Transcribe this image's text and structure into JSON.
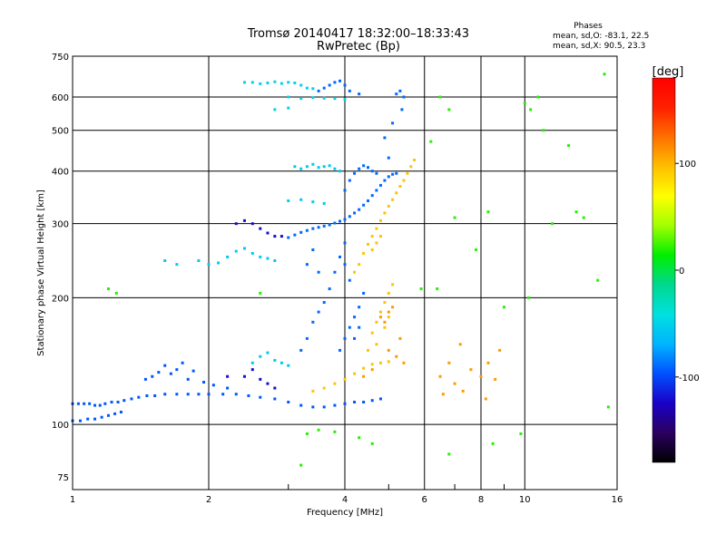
{
  "chart_data": {
    "type": "scatter",
    "title": "Tromsø 20140417 18:32:00–18:33:43",
    "subtitle": "RwPretec (Bp)",
    "xlabel": "Frequency [MHz]",
    "ylabel": "Stationary phase Virtual Height [km]",
    "x_scale": "log",
    "y_scale": "log",
    "xlim": [
      1,
      16
    ],
    "ylim": [
      70,
      750
    ],
    "x_ticks": [
      1,
      2,
      4,
      6,
      8,
      10,
      16
    ],
    "x_tick_labels": [
      "1",
      "2",
      "4",
      "6",
      "8",
      "10",
      "16"
    ],
    "x_grid": [
      1,
      2,
      4,
      6,
      8,
      10
    ],
    "y_ticks": [
      75,
      100,
      200,
      300,
      400,
      500,
      600,
      750
    ],
    "y_tick_labels": [
      "75",
      "100",
      "200",
      "300",
      "400",
      "500",
      "600",
      "750"
    ],
    "y_grid": [
      100,
      200,
      300,
      400,
      500,
      600
    ],
    "grid": true,
    "phases_info": {
      "heading": "Phases",
      "line_o": "mean, sd,O: -83.1, 22.5",
      "line_x": "mean, sd,X:  90.5, 23.3"
    },
    "colorbar": {
      "label": "[deg]",
      "range": [
        -180,
        180
      ],
      "ticks": [
        100,
        0,
        -100
      ],
      "tick_labels": [
        "100",
        "0",
        "-100"
      ],
      "colors": [
        "#000000",
        "#2a0060",
        "#1a00c8",
        "#0050ff",
        "#00b4ff",
        "#00e0e0",
        "#00d890",
        "#00ee00",
        "#a0ff00",
        "#ffff00",
        "#ffc000",
        "#ff7000",
        "#ff2000",
        "#ff0000"
      ]
    },
    "series": [
      {
        "description": "O-mode E/F1 low trace",
        "phase": -95,
        "points": [
          [
            1.0,
            112
          ],
          [
            1.03,
            112
          ],
          [
            1.06,
            112
          ],
          [
            1.09,
            112
          ],
          [
            1.12,
            111
          ],
          [
            1.15,
            111
          ],
          [
            1.18,
            112
          ],
          [
            1.22,
            113
          ],
          [
            1.26,
            113
          ],
          [
            1.3,
            114
          ],
          [
            1.35,
            115
          ],
          [
            1.4,
            116
          ],
          [
            1.46,
            117
          ],
          [
            1.52,
            117
          ],
          [
            1.6,
            118
          ],
          [
            1.7,
            118
          ],
          [
            1.8,
            118
          ],
          [
            1.9,
            118
          ],
          [
            2.0,
            118
          ],
          [
            2.15,
            118
          ],
          [
            2.3,
            118
          ],
          [
            2.45,
            117
          ],
          [
            2.6,
            116
          ],
          [
            2.8,
            115
          ],
          [
            3.0,
            113
          ],
          [
            3.2,
            111
          ],
          [
            3.4,
            110
          ],
          [
            3.6,
            110
          ],
          [
            3.8,
            111
          ],
          [
            4.0,
            112
          ],
          [
            4.2,
            113
          ],
          [
            4.4,
            113
          ],
          [
            4.6,
            114
          ],
          [
            4.8,
            115
          ],
          [
            1.0,
            102
          ],
          [
            1.04,
            102
          ],
          [
            1.08,
            103
          ],
          [
            1.12,
            103
          ],
          [
            1.16,
            104
          ],
          [
            1.2,
            105
          ],
          [
            1.24,
            106
          ],
          [
            1.28,
            107
          ],
          [
            1.45,
            128
          ],
          [
            1.5,
            130
          ],
          [
            1.55,
            133
          ],
          [
            1.6,
            138
          ],
          [
            1.65,
            132
          ],
          [
            1.7,
            135
          ],
          [
            1.75,
            140
          ],
          [
            1.8,
            128
          ],
          [
            1.85,
            134
          ],
          [
            1.95,
            126
          ],
          [
            2.05,
            124
          ],
          [
            2.2,
            122
          ]
        ]
      },
      {
        "description": "O-mode F2 trace with cusp",
        "phase": -90,
        "points": [
          [
            3.0,
            278
          ],
          [
            3.1,
            282
          ],
          [
            3.2,
            286
          ],
          [
            3.3,
            289
          ],
          [
            3.4,
            292
          ],
          [
            3.5,
            294
          ],
          [
            3.6,
            296
          ],
          [
            3.7,
            298
          ],
          [
            3.8,
            301
          ],
          [
            3.9,
            304
          ],
          [
            4.0,
            307
          ],
          [
            4.1,
            312
          ],
          [
            4.2,
            318
          ],
          [
            4.3,
            324
          ],
          [
            4.4,
            332
          ],
          [
            4.5,
            340
          ],
          [
            4.6,
            350
          ],
          [
            4.7,
            360
          ],
          [
            4.8,
            370
          ],
          [
            4.9,
            380
          ],
          [
            5.0,
            388
          ],
          [
            5.1,
            393
          ],
          [
            5.2,
            395
          ],
          [
            3.5,
            620
          ],
          [
            3.6,
            630
          ],
          [
            3.7,
            640
          ],
          [
            3.8,
            650
          ],
          [
            3.9,
            655
          ],
          [
            4.0,
            640
          ],
          [
            4.1,
            620
          ],
          [
            4.3,
            610
          ],
          [
            4.0,
            360
          ],
          [
            4.1,
            380
          ],
          [
            4.2,
            395
          ],
          [
            4.3,
            405
          ],
          [
            4.4,
            412
          ],
          [
            4.5,
            408
          ],
          [
            4.6,
            400
          ],
          [
            4.7,
            395
          ],
          [
            5.2,
            610
          ],
          [
            5.3,
            620
          ],
          [
            5.4,
            600
          ],
          [
            5.35,
            560
          ],
          [
            5.1,
            520
          ],
          [
            4.9,
            480
          ],
          [
            5.0,
            430
          ],
          [
            3.2,
            150
          ],
          [
            3.3,
            160
          ],
          [
            3.4,
            175
          ],
          [
            3.5,
            185
          ],
          [
            3.6,
            195
          ],
          [
            3.7,
            210
          ],
          [
            3.8,
            230
          ],
          [
            3.9,
            250
          ],
          [
            4.0,
            270
          ],
          [
            3.5,
            230
          ],
          [
            3.4,
            260
          ],
          [
            3.3,
            240
          ],
          [
            3.9,
            150
          ],
          [
            4.0,
            160
          ],
          [
            4.1,
            170
          ],
          [
            4.2,
            180
          ],
          [
            4.3,
            190
          ],
          [
            4.4,
            205
          ],
          [
            4.3,
            170
          ],
          [
            4.2,
            160
          ],
          [
            4.1,
            220
          ],
          [
            4.0,
            240
          ]
        ]
      },
      {
        "description": "O-mode mid-height blobs near 2.4-2.8 MHz",
        "phase": -120,
        "points": [
          [
            2.3,
            300
          ],
          [
            2.4,
            305
          ],
          [
            2.5,
            300
          ],
          [
            2.6,
            292
          ],
          [
            2.7,
            285
          ],
          [
            2.8,
            280
          ],
          [
            2.9,
            280
          ],
          [
            2.4,
            130
          ],
          [
            2.5,
            135
          ],
          [
            2.6,
            128
          ],
          [
            2.7,
            125
          ],
          [
            2.8,
            122
          ],
          [
            2.2,
            130
          ]
        ]
      },
      {
        "description": "X-mode F2 trace",
        "phase": 95,
        "points": [
          [
            4.2,
            230
          ],
          [
            4.3,
            240
          ],
          [
            4.4,
            255
          ],
          [
            4.5,
            268
          ],
          [
            4.6,
            280
          ],
          [
            4.7,
            292
          ],
          [
            4.8,
            305
          ],
          [
            4.9,
            318
          ],
          [
            5.0,
            330
          ],
          [
            5.1,
            342
          ],
          [
            5.2,
            355
          ],
          [
            5.3,
            368
          ],
          [
            5.4,
            380
          ],
          [
            5.5,
            395
          ],
          [
            5.6,
            410
          ],
          [
            5.7,
            425
          ],
          [
            4.5,
            150
          ],
          [
            4.6,
            165
          ],
          [
            4.7,
            175
          ],
          [
            4.8,
            185
          ],
          [
            4.9,
            195
          ],
          [
            5.0,
            205
          ],
          [
            5.1,
            215
          ],
          [
            4.7,
            155
          ],
          [
            4.9,
            170
          ],
          [
            5.0,
            180
          ],
          [
            3.4,
            120
          ],
          [
            3.6,
            122
          ],
          [
            3.8,
            125
          ],
          [
            4.0,
            128
          ],
          [
            4.2,
            132
          ],
          [
            4.4,
            136
          ],
          [
            4.6,
            139
          ],
          [
            4.8,
            140
          ],
          [
            5.0,
            141
          ],
          [
            4.6,
            260
          ],
          [
            4.7,
            270
          ],
          [
            4.8,
            280
          ]
        ]
      },
      {
        "description": "Cyan high echoes (~600 km)",
        "phase": -50,
        "points": [
          [
            2.4,
            650
          ],
          [
            2.5,
            650
          ],
          [
            2.6,
            645
          ],
          [
            2.7,
            648
          ],
          [
            2.8,
            652
          ],
          [
            2.9,
            646
          ],
          [
            3.0,
            650
          ],
          [
            3.1,
            648
          ],
          [
            3.2,
            640
          ],
          [
            3.3,
            630
          ],
          [
            3.4,
            628
          ],
          [
            3.0,
            600
          ],
          [
            3.2,
            595
          ],
          [
            3.4,
            598
          ],
          [
            3.6,
            596
          ],
          [
            3.8,
            595
          ],
          [
            4.0,
            592
          ],
          [
            2.8,
            560
          ],
          [
            3.0,
            565
          ]
        ]
      },
      {
        "description": "Cyan F-layer echoes (~400 km)",
        "phase": -55,
        "points": [
          [
            3.1,
            410
          ],
          [
            3.2,
            405
          ],
          [
            3.3,
            410
          ],
          [
            3.4,
            415
          ],
          [
            3.5,
            408
          ],
          [
            3.6,
            410
          ],
          [
            3.7,
            412
          ],
          [
            3.8,
            405
          ],
          [
            3.9,
            400
          ],
          [
            3.0,
            340
          ],
          [
            3.2,
            342
          ],
          [
            3.4,
            338
          ],
          [
            3.6,
            335
          ],
          [
            2.2,
            250
          ],
          [
            2.3,
            258
          ],
          [
            2.4,
            262
          ],
          [
            2.5,
            255
          ],
          [
            2.6,
            250
          ],
          [
            2.7,
            248
          ],
          [
            2.8,
            245
          ],
          [
            1.9,
            245
          ],
          [
            2.0,
            240
          ],
          [
            2.1,
            242
          ],
          [
            1.6,
            245
          ],
          [
            1.7,
            240
          ],
          [
            2.5,
            140
          ],
          [
            2.6,
            145
          ],
          [
            2.7,
            148
          ],
          [
            2.8,
            142
          ],
          [
            2.9,
            140
          ],
          [
            3.0,
            138
          ]
        ]
      },
      {
        "description": "Yellow/orange scattered echoes",
        "phase": 110,
        "points": [
          [
            4.8,
            180
          ],
          [
            5.0,
            185
          ],
          [
            5.1,
            190
          ],
          [
            4.9,
            175
          ],
          [
            5.3,
            160
          ],
          [
            5.0,
            150
          ],
          [
            5.2,
            145
          ],
          [
            5.4,
            140
          ],
          [
            4.4,
            130
          ],
          [
            4.6,
            135
          ],
          [
            6.5,
            130
          ],
          [
            6.8,
            140
          ],
          [
            7.0,
            125
          ],
          [
            7.3,
            120
          ],
          [
            7.6,
            135
          ],
          [
            8.0,
            130
          ],
          [
            8.3,
            140
          ],
          [
            8.6,
            128
          ],
          [
            8.8,
            150
          ],
          [
            8.2,
            115
          ],
          [
            7.2,
            155
          ],
          [
            6.6,
            118
          ]
        ]
      },
      {
        "description": "Sparse scattered outliers",
        "phase": 20,
        "points": [
          [
            1.2,
            210
          ],
          [
            1.25,
            205
          ],
          [
            2.6,
            205
          ],
          [
            3.3,
            95
          ],
          [
            3.5,
            97
          ],
          [
            3.2,
            80
          ],
          [
            3.8,
            96
          ],
          [
            4.3,
            93
          ],
          [
            4.6,
            90
          ],
          [
            6.2,
            470
          ],
          [
            6.5,
            600
          ],
          [
            6.8,
            560
          ],
          [
            7.8,
            260
          ],
          [
            8.3,
            320
          ],
          [
            10.0,
            580
          ],
          [
            10.3,
            560
          ],
          [
            10.7,
            600
          ],
          [
            11.0,
            500
          ],
          [
            11.5,
            300
          ],
          [
            12.5,
            460
          ],
          [
            13.0,
            320
          ],
          [
            14.5,
            220
          ],
          [
            15.0,
            680
          ],
          [
            15.3,
            110
          ],
          [
            9.0,
            190
          ],
          [
            8.5,
            90
          ],
          [
            6.8,
            85
          ],
          [
            9.8,
            95
          ],
          [
            7.0,
            310
          ],
          [
            10.2,
            200
          ],
          [
            13.5,
            310
          ],
          [
            5.9,
            210
          ],
          [
            6.4,
            210
          ]
        ]
      }
    ]
  }
}
